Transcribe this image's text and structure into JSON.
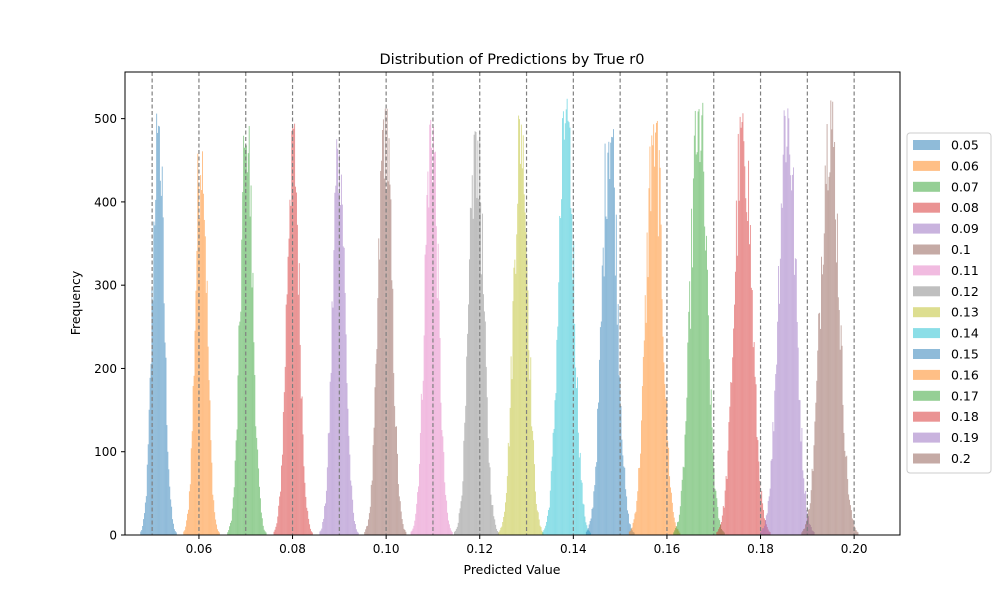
{
  "chart_data": {
    "type": "histogram",
    "title": "Distribution of Predictions by True r0",
    "xlabel": "Predicted Value",
    "ylabel": "Frequency",
    "xlim": [
      0.0442,
      0.2098
    ],
    "ylim": [
      0,
      556
    ],
    "x_ticks": [
      0.06,
      0.08,
      0.1,
      0.12,
      0.14,
      0.16,
      0.18,
      0.2
    ],
    "x_tick_labels": [
      "0.06",
      "0.08",
      "0.10",
      "0.12",
      "0.14",
      "0.16",
      "0.18",
      "0.20"
    ],
    "y_ticks": [
      0,
      100,
      200,
      300,
      400,
      500
    ],
    "y_tick_labels": [
      "0",
      "100",
      "200",
      "300",
      "400",
      "500"
    ],
    "grid": false,
    "legend_position": "right",
    "reference_line_color": "#808080",
    "reference_lines": [
      0.05,
      0.06,
      0.07,
      0.08,
      0.09,
      0.1,
      0.11,
      0.12,
      0.13,
      0.14,
      0.15,
      0.16,
      0.17,
      0.18,
      0.19,
      0.2
    ],
    "series": [
      {
        "name": "0.05",
        "color": "#1f77b4",
        "center": 0.0513,
        "spread": 0.0012,
        "peak": 510
      },
      {
        "name": "0.06",
        "color": "#ff7f0e",
        "center": 0.0605,
        "spread": 0.0012,
        "peak": 490
      },
      {
        "name": "0.07",
        "color": "#2ca02c",
        "center": 0.0702,
        "spread": 0.0013,
        "peak": 495
      },
      {
        "name": "0.08",
        "color": "#d62728",
        "center": 0.0801,
        "spread": 0.0013,
        "peak": 500
      },
      {
        "name": "0.09",
        "color": "#9467bd",
        "center": 0.0899,
        "spread": 0.0013,
        "peak": 485
      },
      {
        "name": "0.1",
        "color": "#8c564b",
        "center": 0.0998,
        "spread": 0.0014,
        "peak": 520
      },
      {
        "name": "0.11",
        "color": "#e377c2",
        "center": 0.1097,
        "spread": 0.0014,
        "peak": 510
      },
      {
        "name": "0.12",
        "color": "#7f7f7f",
        "center": 0.1193,
        "spread": 0.0015,
        "peak": 500
      },
      {
        "name": "0.13",
        "color": "#bcbd22",
        "center": 0.1288,
        "spread": 0.0015,
        "peak": 510
      },
      {
        "name": "0.14",
        "color": "#17becf",
        "center": 0.1385,
        "spread": 0.0016,
        "peak": 525
      },
      {
        "name": "0.15",
        "color": "#1f77b4",
        "center": 0.1478,
        "spread": 0.0016,
        "peak": 510
      },
      {
        "name": "0.16",
        "color": "#ff7f0e",
        "center": 0.1573,
        "spread": 0.0017,
        "peak": 505
      },
      {
        "name": "0.17",
        "color": "#2ca02c",
        "center": 0.1668,
        "spread": 0.0017,
        "peak": 520
      },
      {
        "name": "0.18",
        "color": "#d62728",
        "center": 0.1763,
        "spread": 0.0018,
        "peak": 510
      },
      {
        "name": "0.19",
        "color": "#9467bd",
        "center": 0.1857,
        "spread": 0.0018,
        "peak": 525
      },
      {
        "name": "0.2",
        "color": "#8c564b",
        "center": 0.1948,
        "spread": 0.0019,
        "peak": 525
      }
    ]
  }
}
